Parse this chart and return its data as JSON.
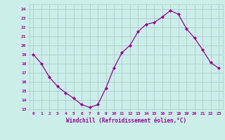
{
  "x": [
    0,
    1,
    2,
    3,
    4,
    5,
    6,
    7,
    8,
    9,
    10,
    11,
    12,
    13,
    14,
    15,
    16,
    17,
    18,
    19,
    20,
    21,
    22,
    23
  ],
  "y": [
    19,
    18,
    16.5,
    15.5,
    14.8,
    14.2,
    13.5,
    13.2,
    13.5,
    15.3,
    17.5,
    19.2,
    20.0,
    21.5,
    22.3,
    22.5,
    23.1,
    23.8,
    23.4,
    21.8,
    20.8,
    19.5,
    18.1,
    17.5
  ],
  "line_color": "#990099",
  "marker": "D",
  "marker_size": 2,
  "bg_color": "#cceee8",
  "grid_color": "#aacccc",
  "xlabel": "Windchill (Refroidissement éolien,°C)",
  "xlabel_color": "#990099",
  "ylabel_ticks": [
    13,
    14,
    15,
    16,
    17,
    18,
    19,
    20,
    21,
    22,
    23,
    24
  ],
  "xlim": [
    -0.5,
    23.5
  ],
  "ylim": [
    13,
    24.5
  ]
}
